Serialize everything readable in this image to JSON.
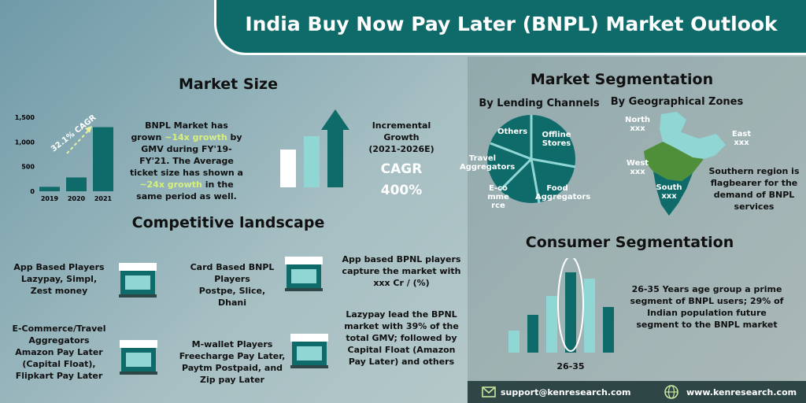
{
  "header": {
    "title": "India Buy Now Pay Later (BNPL) Market Outlook"
  },
  "market_size": {
    "title": "Market Size",
    "cagr_label": "32.1% CAGR",
    "description_parts": [
      "BNPL Market has grown ",
      "~14x growth",
      " by GMV during FY'19-FY'21. The Average ticket size has shown a ",
      "~24x growth",
      " in the same period as well."
    ],
    "incremental_growth": "Incremental Growth",
    "period": "(2021-2026E)",
    "cagr_title": "CAGR",
    "cagr_value": "400%"
  },
  "chart_data": {
    "type": "bar",
    "categories": [
      "2019",
      "2020",
      "2021"
    ],
    "values": [
      90,
      280,
      1300
    ],
    "ylim": [
      0,
      1500
    ],
    "yticks": [
      "1,500",
      "1,000",
      "500",
      "0"
    ],
    "color": "#0f6b6a"
  },
  "competitive": {
    "title": "Competitive landscape",
    "app_based": "App Based  Players Lazypay, Simpl, Zest money",
    "card_based_title": "Card Based BNPL Players",
    "card_based_list": "Postpe, Slice,  Dhani",
    "app_capture": "App based BPNL players capture the market with xxx Cr /  (%)",
    "ecommerce_title": "E-Commerce/Travel Aggregators",
    "ecommerce_list": "Amazon Pay Later (Capital Float), Flipkart Pay Later",
    "mwallet_title": "M-wallet Players",
    "mwallet_list": "Freecharge Pay Later, Paytm Postpaid, and Zip pay Later",
    "lazypay_lead": "Lazypay lead the BPNL market with 39% of the total GMV; followed by Capital Float (Amazon Pay Later) and others"
  },
  "segmentation": {
    "title": "Market Segmentation",
    "lending_title": "By Lending Channels",
    "slices": [
      "Others",
      "Offline Stores",
      "Travel Aggregators",
      "E-commerce",
      "Food Aggregators"
    ],
    "geo_title": "By Geographical Zones",
    "north": "North",
    "north_val": "xxx",
    "east": "East",
    "east_val": "xxx",
    "west": "West",
    "west_val": "xxx",
    "south": "South",
    "south_val": "xxx",
    "geo_note": "Southern region is flagbearer for the demand of BNPL services"
  },
  "consumer": {
    "title": "Consumer Segmentation",
    "age_label": "26-35",
    "note": "26-35 Years age group a prime segment of BNPL users; 29% of Indian population future segment to the BNPL market"
  },
  "footer": {
    "email": "support@kenresearch.com",
    "website": "www.kenresearch.com"
  },
  "colors": {
    "teal": "#0f6b6a",
    "light": "#8fd6d4",
    "dark": "#2e4645",
    "green": "#4f8f3a"
  }
}
